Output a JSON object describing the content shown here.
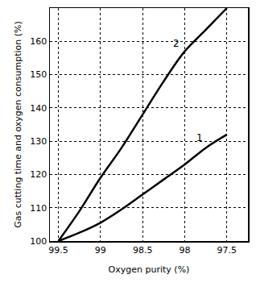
{
  "chart_data": {
    "type": "line",
    "xlabel": "Oxygen purity (%)",
    "ylabel": "Gas cutting time and oxygen consumption (%)",
    "x": [
      99.5,
      99.25,
      99,
      98.75,
      98.5,
      98.25,
      98,
      97.75,
      97.5
    ],
    "series": [
      {
        "name": "1",
        "color": "#000000",
        "line_style": "solid",
        "values": [
          100,
          102.5,
          105.5,
          109.5,
          114,
          118.5,
          123,
          128,
          132
        ]
      },
      {
        "name": "2",
        "color": "#000000",
        "line_style": "solid",
        "values": [
          100,
          109,
          119,
          128,
          138,
          148,
          157,
          163.5,
          170
        ]
      }
    ],
    "xlim": [
      99.6,
      97.25
    ],
    "ylim": [
      100,
      170
    ],
    "xticks": [
      99.5,
      99,
      98.5,
      98,
      97.5
    ],
    "yticks": [
      100,
      110,
      120,
      130,
      140,
      150,
      160
    ],
    "grid": true
  }
}
